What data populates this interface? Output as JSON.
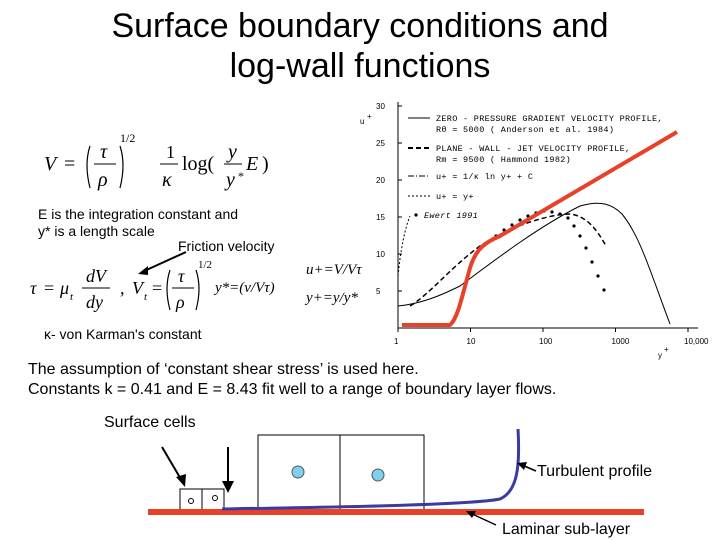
{
  "slide": {
    "title_line1": "Surface boundary conditions and",
    "title_line2": "log-wall functions",
    "e_note_line1": "E is the integration constant and",
    "e_note_line2": "y* is a length scale",
    "friction_velocity_label": "Friction velocity",
    "u_plus_eq": "u+=V/Vτ",
    "y_star_eq": "y*=(ν/Vτ)",
    "y_plus_eq": "y+=y/y*",
    "kappa_note": "κ- von Karman's constant",
    "assumption_line1": "The assumption of ‘constant shear stress’ is used here.",
    "assumption_line2": "Constants k = 0.41 and E = 8.43 fit well to a range of boundary layer flows.",
    "surface_cells_label": "Surface  cells",
    "turbulent_profile_label": "Turbulent profile",
    "laminar_sublayer_label": "Laminar sub-layer"
  },
  "chart_data": {
    "type": "line",
    "y_axis_label": "u+",
    "x_axis_label": "y+",
    "y_ticks": [
      "30",
      "25",
      "20",
      "15",
      "10",
      "5"
    ],
    "x_ticks": [
      "1",
      "10",
      "100",
      "1000",
      "10,000"
    ],
    "xscale": "log",
    "xlim": [
      1,
      10000
    ],
    "ylim": [
      0,
      30
    ],
    "legend": [
      "ZERO - PRESSURE GRADIENT VELOCITY PROFILE,",
      "Rθ = 5000 ( Anderson  et  al. 1984)",
      "PLANE - WALL - JET  VELOCITY PROFILE,",
      "Rm = 9500 ( Hammond 1982)",
      "u+ = 1/κ ln y+ + C",
      "u+ = y+",
      "Ewert 1991"
    ],
    "overlay_color": "#e8412a"
  },
  "colors": {
    "red_line": "#e8412a",
    "blue_profile": "#3a3aa0",
    "circle_fill": "#7fd0ec"
  }
}
